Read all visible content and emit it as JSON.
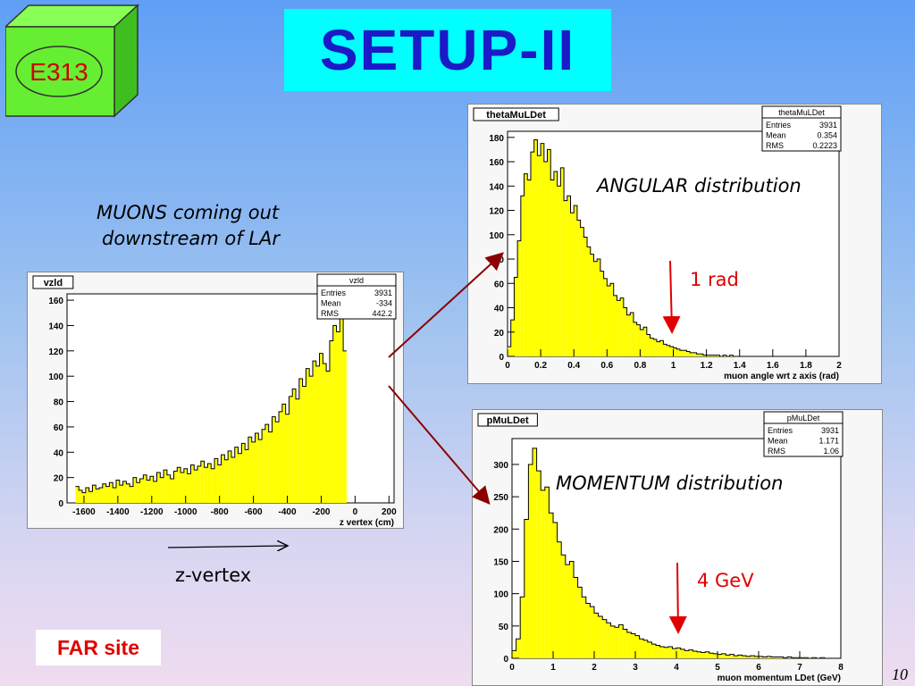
{
  "slide": {
    "title": "SETUP-II",
    "badge": "E313",
    "caption_muons": [
      "MUONS coming out",
      "downstream of LAr"
    ],
    "zvertex_label": "z-vertex",
    "far_site": "FAR site",
    "page_number": "10",
    "angular_label": "ANGULAR distribution",
    "momentum_label": "MOMENTUM distribution",
    "angle_marker": "1 rad",
    "momentum_marker": "4 GeV",
    "colors": {
      "fill": "#ffff00",
      "cube": "#66ee33",
      "title_bg": "#00ffff",
      "title_text": "#1a1ac8",
      "arrow": "#8b0000",
      "marker": "#e00000"
    }
  },
  "chart_data": [
    {
      "type": "bar",
      "title": "vzld",
      "xlabel": "z vertex (cm)",
      "ylabel": "",
      "xlim": [
        -1700,
        230
      ],
      "ylim": [
        0,
        165
      ],
      "xticks": [
        -1600,
        -1400,
        -1200,
        -1000,
        -800,
        -600,
        -400,
        -200,
        0,
        200
      ],
      "yticks": [
        0,
        20,
        40,
        60,
        80,
        100,
        120,
        140,
        160
      ],
      "stats": {
        "name": "vzld",
        "Entries": "3931",
        "Mean": "-334",
        "RMS": "442.2"
      },
      "bin_edges_start": -1650,
      "bin_width": 20,
      "values": [
        13,
        10,
        8,
        12,
        9,
        14,
        11,
        12,
        15,
        13,
        16,
        12,
        18,
        14,
        17,
        15,
        13,
        20,
        16,
        19,
        22,
        18,
        21,
        17,
        24,
        20,
        26,
        22,
        19,
        25,
        28,
        24,
        27,
        23,
        30,
        26,
        29,
        33,
        28,
        31,
        27,
        35,
        30,
        38,
        34,
        41,
        36,
        44,
        39,
        47,
        42,
        52,
        48,
        55,
        50,
        58,
        62,
        56,
        68,
        64,
        72,
        78,
        70,
        84,
        90,
        82,
        98,
        92,
        106,
        100,
        112,
        108,
        118,
        110,
        104,
        128,
        140,
        135,
        155,
        120
      ]
    },
    {
      "type": "bar",
      "title": "thetaMuLDet",
      "xlabel": "muon angle wrt z axis (rad)",
      "ylabel": "",
      "xlim": [
        0,
        2
      ],
      "ylim": [
        0,
        185
      ],
      "xticks": [
        "0",
        "0.2",
        "0.4",
        "0.6",
        "0.8",
        "1",
        "1.2",
        "1.4",
        "1.6",
        "1.8",
        "2"
      ],
      "yticks": [
        0,
        20,
        40,
        60,
        80,
        100,
        120,
        140,
        160,
        180
      ],
      "stats": {
        "name": "thetaMuLDet",
        "Entries": "3931",
        "Mean": "0.354",
        "RMS": "0.2223"
      },
      "bin_width": 0.02,
      "values": [
        8,
        30,
        65,
        95,
        132,
        150,
        145,
        168,
        178,
        165,
        175,
        160,
        170,
        145,
        152,
        140,
        155,
        128,
        132,
        118,
        124,
        112,
        106,
        98,
        90,
        84,
        78,
        80,
        70,
        64,
        58,
        60,
        50,
        46,
        48,
        40,
        34,
        36,
        28,
        26,
        22,
        24,
        18,
        15,
        14,
        12,
        13,
        10,
        9,
        8,
        7,
        6,
        5,
        5,
        4,
        3,
        3,
        2,
        2,
        1,
        1,
        1,
        1,
        1,
        0,
        1,
        0,
        1,
        0,
        0
      ]
    },
    {
      "type": "bar",
      "title": "pMuLDet",
      "xlabel": "muon momentum LDet (GeV)",
      "ylabel": "",
      "xlim": [
        0,
        8
      ],
      "ylim": [
        0,
        340
      ],
      "xticks": [
        "0",
        "1",
        "2",
        "3",
        "4",
        "5",
        "6",
        "7",
        "8"
      ],
      "yticks": [
        0,
        50,
        100,
        150,
        200,
        250,
        300
      ],
      "stats": {
        "name": "pMuLDet",
        "Entries": "3931",
        "Mean": "1.171",
        "RMS": "1.06"
      },
      "bin_width": 0.1,
      "values": [
        12,
        30,
        95,
        215,
        300,
        325,
        290,
        260,
        265,
        225,
        210,
        180,
        160,
        145,
        150,
        125,
        110,
        95,
        85,
        80,
        70,
        65,
        60,
        55,
        50,
        48,
        52,
        45,
        40,
        38,
        35,
        30,
        28,
        25,
        22,
        20,
        18,
        17,
        18,
        15,
        16,
        14,
        12,
        13,
        11,
        10,
        9,
        10,
        8,
        7,
        6,
        7,
        5,
        6,
        4,
        5,
        4,
        3,
        4,
        3,
        3,
        2,
        3,
        2,
        2,
        2,
        1,
        2,
        1,
        1,
        1,
        1,
        0,
        1,
        0,
        1,
        0,
        0,
        0,
        0
      ]
    }
  ]
}
